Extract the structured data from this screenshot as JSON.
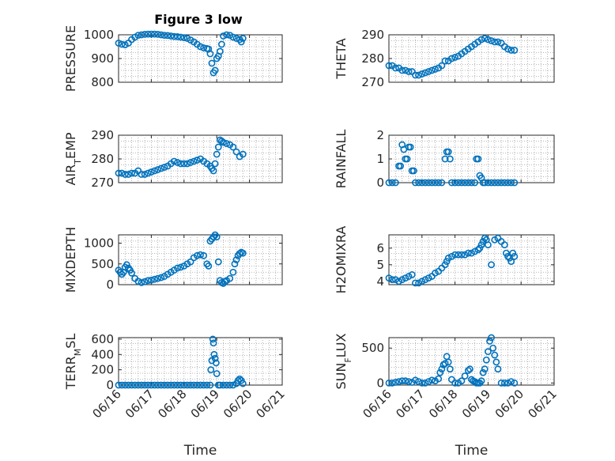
{
  "figure": {
    "title": "Figure 3 low",
    "background": "#ffffff",
    "marker_color": "#0072BD"
  },
  "chart_data": [
    {
      "type": "scatter",
      "title": "Figure 3 low",
      "ylabel": "PRESSURE",
      "ylabel_parts": [
        {
          "t": "PRESSURE",
          "s": ""
        }
      ],
      "xlabel": "",
      "xlim": [
        0,
        5
      ],
      "ylim": [
        800,
        1000
      ],
      "yticks": [
        800,
        900,
        1000
      ],
      "xticks": [
        0,
        1,
        2,
        3,
        4,
        5
      ],
      "xticklabels": [],
      "grid": true,
      "series": [
        {
          "x": [
            0,
            0.1,
            0.2,
            0.3,
            0.4,
            0.5,
            0.6,
            0.7,
            0.8,
            0.9,
            1.0,
            1.1,
            1.2,
            1.3,
            1.4,
            1.5,
            1.6,
            1.7,
            1.8,
            1.9,
            2.0,
            2.1,
            2.2,
            2.3,
            2.4,
            2.5,
            2.6,
            2.7,
            2.75,
            2.8,
            2.85,
            2.9,
            2.95,
            3.0,
            3.05,
            3.1,
            3.15,
            3.2,
            3.3,
            3.4,
            3.5,
            3.6,
            3.7,
            3.75,
            3.8
          ],
          "y": [
            965,
            960,
            958,
            965,
            980,
            990,
            998,
            1000,
            1002,
            1003,
            1003,
            1003,
            1002,
            1000,
            998,
            997,
            995,
            993,
            992,
            990,
            988,
            985,
            978,
            970,
            960,
            950,
            945,
            942,
            940,
            920,
            880,
            840,
            850,
            900,
            910,
            930,
            960,
            995,
            1000,
            998,
            990,
            985,
            980,
            970,
            985
          ]
        }
      ]
    },
    {
      "type": "scatter",
      "ylabel": "THETA",
      "ylabel_parts": [
        {
          "t": "THETA",
          "s": ""
        }
      ],
      "xlabel": "",
      "xlim": [
        0,
        5
      ],
      "ylim": [
        270,
        290
      ],
      "yticks": [
        270,
        280,
        290
      ],
      "xticks": [
        0,
        1,
        2,
        3,
        4,
        5
      ],
      "xticklabels": [],
      "grid": true,
      "series": [
        {
          "x": [
            0,
            0.1,
            0.2,
            0.3,
            0.4,
            0.5,
            0.6,
            0.7,
            0.8,
            0.9,
            1.0,
            1.1,
            1.2,
            1.3,
            1.4,
            1.5,
            1.6,
            1.7,
            1.8,
            1.9,
            2.0,
            2.1,
            2.2,
            2.3,
            2.4,
            2.5,
            2.6,
            2.7,
            2.8,
            2.9,
            3.0,
            3.1,
            3.2,
            3.3,
            3.4,
            3.5,
            3.6,
            3.7,
            3.8
          ],
          "y": [
            277,
            277,
            276,
            276,
            275,
            275,
            274.5,
            274.5,
            273,
            273,
            273.5,
            274,
            274.5,
            275,
            275.5,
            276,
            277,
            279,
            279,
            280,
            280.5,
            281,
            282,
            283,
            284,
            285,
            286,
            287,
            288,
            288.5,
            288,
            287.5,
            287,
            287,
            286.5,
            285,
            284,
            283.5,
            283.5
          ]
        }
      ]
    },
    {
      "type": "scatter",
      "ylabel": "AIR_TEMP",
      "ylabel_parts": [
        {
          "t": "AIR",
          "s": ""
        },
        {
          "t": "T",
          "s": "sub"
        },
        {
          "t": "EMP",
          "s": ""
        }
      ],
      "xlabel": "",
      "xlim": [
        0,
        5
      ],
      "ylim": [
        270,
        290
      ],
      "yticks": [
        270,
        280,
        290
      ],
      "xticks": [
        0,
        1,
        2,
        3,
        4,
        5
      ],
      "xticklabels": [],
      "grid": true,
      "series": [
        {
          "x": [
            0,
            0.1,
            0.2,
            0.3,
            0.4,
            0.5,
            0.6,
            0.7,
            0.8,
            0.9,
            1.0,
            1.1,
            1.2,
            1.3,
            1.4,
            1.5,
            1.6,
            1.7,
            1.8,
            1.9,
            2.0,
            2.1,
            2.2,
            2.3,
            2.4,
            2.5,
            2.6,
            2.7,
            2.8,
            2.85,
            2.9,
            2.95,
            3.0,
            3.05,
            3.1,
            3.15,
            3.2,
            3.3,
            3.4,
            3.5,
            3.6,
            3.7,
            3.8
          ],
          "y": [
            274,
            274,
            273.5,
            273.5,
            274,
            274,
            275,
            273.5,
            273.5,
            274,
            274.5,
            275,
            275.5,
            276,
            276.5,
            277,
            278,
            279,
            278.5,
            278,
            278,
            278,
            278.5,
            279,
            279.5,
            280,
            279,
            278,
            277,
            276,
            275,
            278,
            282,
            285,
            288,
            287.5,
            287,
            286.5,
            286,
            285,
            283,
            281,
            282
          ]
        }
      ]
    },
    {
      "type": "scatter",
      "ylabel": "RAINFALL",
      "ylabel_parts": [
        {
          "t": "RAINFALL",
          "s": ""
        }
      ],
      "xlabel": "",
      "xlim": [
        0,
        5
      ],
      "ylim": [
        0,
        2
      ],
      "yticks": [
        0,
        1,
        2
      ],
      "xticks": [
        0,
        1,
        2,
        3,
        4,
        5
      ],
      "xticklabels": [],
      "grid": true,
      "series": [
        {
          "x": [
            0,
            0.1,
            0.2,
            0.3,
            0.35,
            0.4,
            0.45,
            0.5,
            0.55,
            0.6,
            0.65,
            0.7,
            0.75,
            0.8,
            0.9,
            1.0,
            1.1,
            1.2,
            1.3,
            1.4,
            1.5,
            1.6,
            1.7,
            1.75,
            1.8,
            1.85,
            1.9,
            2.0,
            2.1,
            2.2,
            2.3,
            2.4,
            2.5,
            2.6,
            2.65,
            2.7,
            2.75,
            2.8,
            2.85,
            2.9,
            3.0,
            3.1,
            3.2,
            3.3,
            3.4,
            3.5,
            3.6,
            3.7,
            3.8
          ],
          "y": [
            0,
            0,
            0,
            0.7,
            0.7,
            1.6,
            1.4,
            1.0,
            1.0,
            1.5,
            1.5,
            0.5,
            0.5,
            0,
            0,
            0,
            0,
            0,
            0,
            0,
            0,
            0,
            1.0,
            1.3,
            1.3,
            1.0,
            0,
            0,
            0,
            0,
            0,
            0,
            0,
            0,
            1.0,
            1.0,
            0.3,
            0.2,
            0,
            0,
            0,
            0,
            0,
            0,
            0,
            0,
            0,
            0,
            0
          ]
        }
      ]
    },
    {
      "type": "scatter",
      "ylabel": "MIXDEPTH",
      "ylabel_parts": [
        {
          "t": "MIXDEPTH",
          "s": ""
        }
      ],
      "xlabel": "",
      "xlim": [
        0,
        5
      ],
      "ylim": [
        0,
        1200
      ],
      "yticks": [
        0,
        500,
        1000
      ],
      "xticks": [
        0,
        1,
        2,
        3,
        4,
        5
      ],
      "xticklabels": [],
      "grid": true,
      "series": [
        {
          "x": [
            0,
            0.05,
            0.1,
            0.15,
            0.2,
            0.25,
            0.3,
            0.35,
            0.4,
            0.5,
            0.6,
            0.7,
            0.8,
            0.9,
            1.0,
            1.1,
            1.2,
            1.3,
            1.4,
            1.5,
            1.6,
            1.7,
            1.8,
            1.9,
            2.0,
            2.1,
            2.2,
            2.3,
            2.4,
            2.5,
            2.6,
            2.7,
            2.75,
            2.8,
            2.85,
            2.9,
            2.95,
            3.0,
            3.05,
            3.1,
            3.15,
            3.2,
            3.25,
            3.3,
            3.4,
            3.5,
            3.55,
            3.6,
            3.65,
            3.7,
            3.75,
            3.8
          ],
          "y": [
            350,
            300,
            250,
            300,
            420,
            480,
            400,
            350,
            280,
            150,
            80,
            50,
            70,
            100,
            110,
            130,
            150,
            170,
            200,
            250,
            300,
            350,
            400,
            420,
            450,
            500,
            550,
            650,
            700,
            720,
            700,
            500,
            450,
            1050,
            1100,
            1150,
            1200,
            1150,
            550,
            100,
            50,
            30,
            70,
            100,
            150,
            300,
            500,
            600,
            700,
            750,
            780,
            760
          ]
        }
      ]
    },
    {
      "type": "scatter",
      "ylabel": "H2OMIXRA",
      "ylabel_parts": [
        {
          "t": "H2OMIXRA",
          "s": ""
        }
      ],
      "xlabel": "",
      "xlim": [
        0,
        5
      ],
      "ylim": [
        3.8,
        6.8
      ],
      "yticks": [
        4,
        5,
        6
      ],
      "xticks": [
        0,
        1,
        2,
        3,
        4,
        5
      ],
      "xticklabels": [],
      "grid": true,
      "series": [
        {
          "x": [
            0,
            0.1,
            0.2,
            0.3,
            0.4,
            0.5,
            0.6,
            0.7,
            0.8,
            0.9,
            1.0,
            1.1,
            1.2,
            1.3,
            1.4,
            1.5,
            1.6,
            1.7,
            1.75,
            1.8,
            1.9,
            2.0,
            2.1,
            2.2,
            2.3,
            2.4,
            2.5,
            2.6,
            2.7,
            2.75,
            2.8,
            2.85,
            2.9,
            2.95,
            3.0,
            3.1,
            3.2,
            3.3,
            3.4,
            3.5,
            3.55,
            3.6,
            3.65,
            3.7,
            3.75,
            3.8
          ],
          "y": [
            4.2,
            4.1,
            4.1,
            4.0,
            4.1,
            4.2,
            4.3,
            4.4,
            3.9,
            3.9,
            4.0,
            4.1,
            4.2,
            4.3,
            4.5,
            4.6,
            4.8,
            5.0,
            5.2,
            5.4,
            5.5,
            5.6,
            5.6,
            5.6,
            5.6,
            5.7,
            5.7,
            5.8,
            5.9,
            6.0,
            6.2,
            6.4,
            6.6,
            6.5,
            6.2,
            5.0,
            6.5,
            6.6,
            6.4,
            6.2,
            5.7,
            5.5,
            5.4,
            5.2,
            5.7,
            5.5
          ]
        }
      ]
    },
    {
      "type": "scatter",
      "ylabel": "TERR_MSL",
      "ylabel_parts": [
        {
          "t": "TERR",
          "s": ""
        },
        {
          "t": "M",
          "s": "sub"
        },
        {
          "t": "SL",
          "s": ""
        }
      ],
      "xlabel": "Time",
      "xlim": [
        0,
        5
      ],
      "ylim": [
        0,
        620
      ],
      "yticks": [
        0,
        200,
        400,
        600
      ],
      "xticks": [
        0,
        1,
        2,
        3,
        4,
        5
      ],
      "xticklabels": [
        "06/16",
        "06/17",
        "06/18",
        "06/19",
        "06/20",
        "06/21"
      ],
      "grid": true,
      "series": [
        {
          "x": [
            0,
            0.1,
            0.2,
            0.3,
            0.4,
            0.5,
            0.6,
            0.7,
            0.8,
            0.9,
            1.0,
            1.1,
            1.2,
            1.3,
            1.4,
            1.5,
            1.6,
            1.7,
            1.8,
            1.9,
            2.0,
            2.1,
            2.2,
            2.3,
            2.4,
            2.5,
            2.6,
            2.7,
            2.8,
            2.82,
            2.85,
            2.88,
            2.9,
            2.92,
            2.95,
            2.98,
            3.0,
            3.05,
            3.1,
            3.2,
            3.3,
            3.4,
            3.5,
            3.6,
            3.65,
            3.7,
            3.75,
            3.8
          ],
          "y": [
            0,
            0,
            0,
            0,
            0,
            0,
            0,
            0,
            0,
            0,
            0,
            0,
            0,
            0,
            0,
            0,
            0,
            0,
            0,
            0,
            0,
            0,
            0,
            0,
            0,
            0,
            0,
            0,
            0,
            200,
            320,
            600,
            550,
            400,
            350,
            290,
            150,
            0,
            0,
            0,
            0,
            0,
            0,
            20,
            60,
            80,
            60,
            20
          ]
        }
      ]
    },
    {
      "type": "scatter",
      "ylabel": "SUN_FLUX",
      "ylabel_parts": [
        {
          "t": "SUN",
          "s": ""
        },
        {
          "t": "F",
          "s": "sub"
        },
        {
          "t": "LUX",
          "s": ""
        }
      ],
      "xlabel": "Time",
      "xlim": [
        0,
        5
      ],
      "ylim": [
        -30,
        650
      ],
      "yticks": [
        0,
        500
      ],
      "xticks": [
        0,
        1,
        2,
        3,
        4,
        5
      ],
      "xticklabels": [
        "06/16",
        "06/17",
        "06/18",
        "06/19",
        "06/20",
        "06/21"
      ],
      "grid": true,
      "series": [
        {
          "x": [
            0,
            0.1,
            0.2,
            0.3,
            0.4,
            0.5,
            0.6,
            0.7,
            0.8,
            0.9,
            1.0,
            1.1,
            1.2,
            1.3,
            1.4,
            1.5,
            1.55,
            1.6,
            1.65,
            1.7,
            1.75,
            1.8,
            1.85,
            1.9,
            2.0,
            2.1,
            2.2,
            2.3,
            2.4,
            2.45,
            2.5,
            2.55,
            2.6,
            2.65,
            2.7,
            2.75,
            2.8,
            2.85,
            2.9,
            2.95,
            3.0,
            3.05,
            3.1,
            3.15,
            3.2,
            3.25,
            3.3,
            3.4,
            3.5,
            3.6,
            3.7,
            3.8
          ],
          "y": [
            0,
            0,
            10,
            20,
            30,
            30,
            20,
            10,
            40,
            20,
            0,
            0,
            20,
            40,
            30,
            60,
            150,
            200,
            260,
            280,
            380,
            300,
            200,
            50,
            0,
            0,
            30,
            100,
            180,
            200,
            50,
            30,
            20,
            0,
            0,
            0,
            30,
            150,
            200,
            330,
            450,
            600,
            650,
            500,
            400,
            300,
            200,
            0,
            0,
            0,
            20,
            0
          ]
        }
      ]
    }
  ]
}
